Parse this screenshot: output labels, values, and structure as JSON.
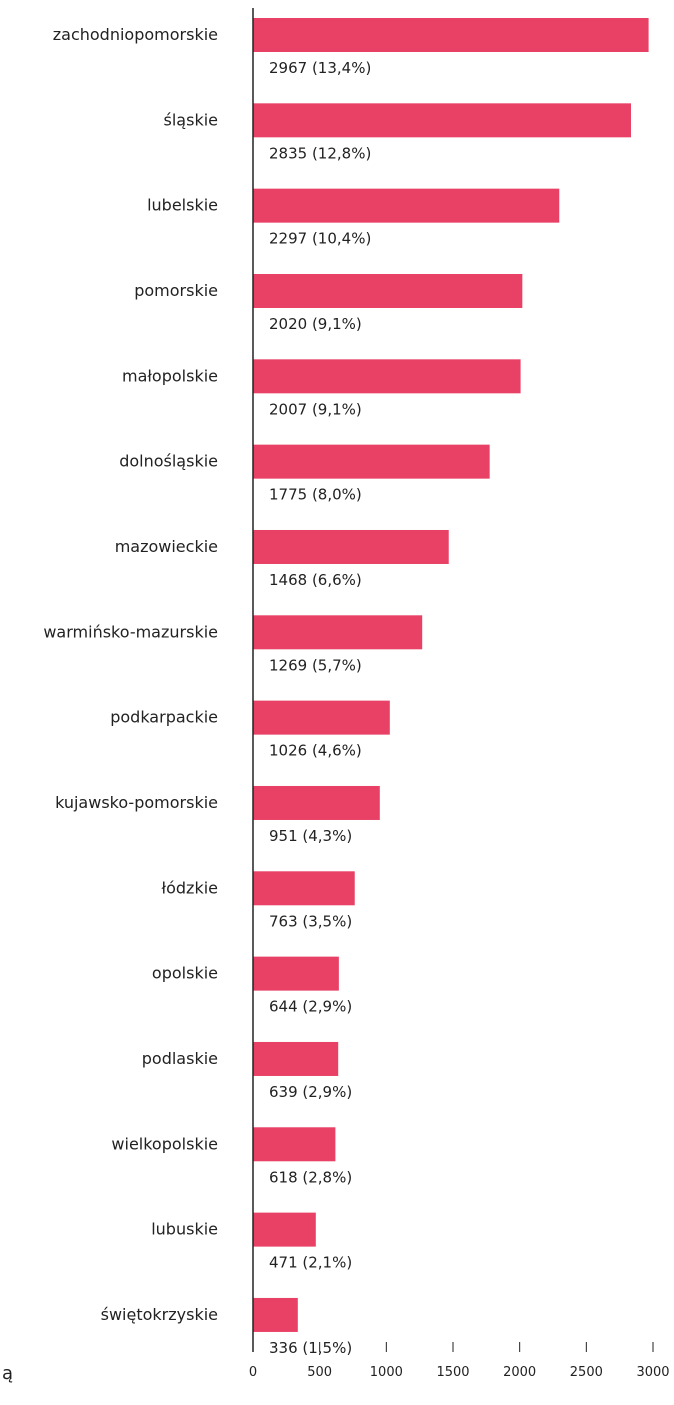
{
  "chart_data": {
    "type": "bar",
    "orientation": "horizontal",
    "categories": [
      "zachodniopomorskie",
      "śląskie",
      "lubelskie",
      "pomorskie",
      "małopolskie",
      "dolnośląskie",
      "mazowieckie",
      "warmińsko-mazurskie",
      "podkarpackie",
      "kujawsko-pomorskie",
      "łódzkie",
      "opolskie",
      "podlaskie",
      "wielkopolskie",
      "lubuskie",
      "świętokrzyskie"
    ],
    "values": [
      2967,
      2835,
      2297,
      2020,
      2007,
      1775,
      1468,
      1269,
      1026,
      951,
      763,
      644,
      639,
      618,
      471,
      336
    ],
    "data_labels": [
      "2967 (13,4%)",
      "2835 (12,8%)",
      "2297 (10,4%)",
      "2020 (9,1%)",
      "2007 (9,1%)",
      "1775 (8,0%)",
      "1468 (6,6%)",
      "1269 (5,7%)",
      "1026 (4,6%)",
      "951 (4,3%)",
      "763 (3,5%)",
      "644 (2,9%)",
      "639 (2,9%)",
      "618 (2,8%)",
      "471 (2,1%)",
      "336 (1,5%)"
    ],
    "xlim": [
      0,
      3000
    ],
    "x_ticks": [
      0,
      500,
      1000,
      1500,
      2000,
      2500,
      3000
    ],
    "title": "",
    "xlabel": "",
    "ylabel": "",
    "grid": false,
    "legend": "none",
    "bar_color": "#e84165",
    "axis_color": "#222222"
  },
  "stray_glyph": "ą"
}
